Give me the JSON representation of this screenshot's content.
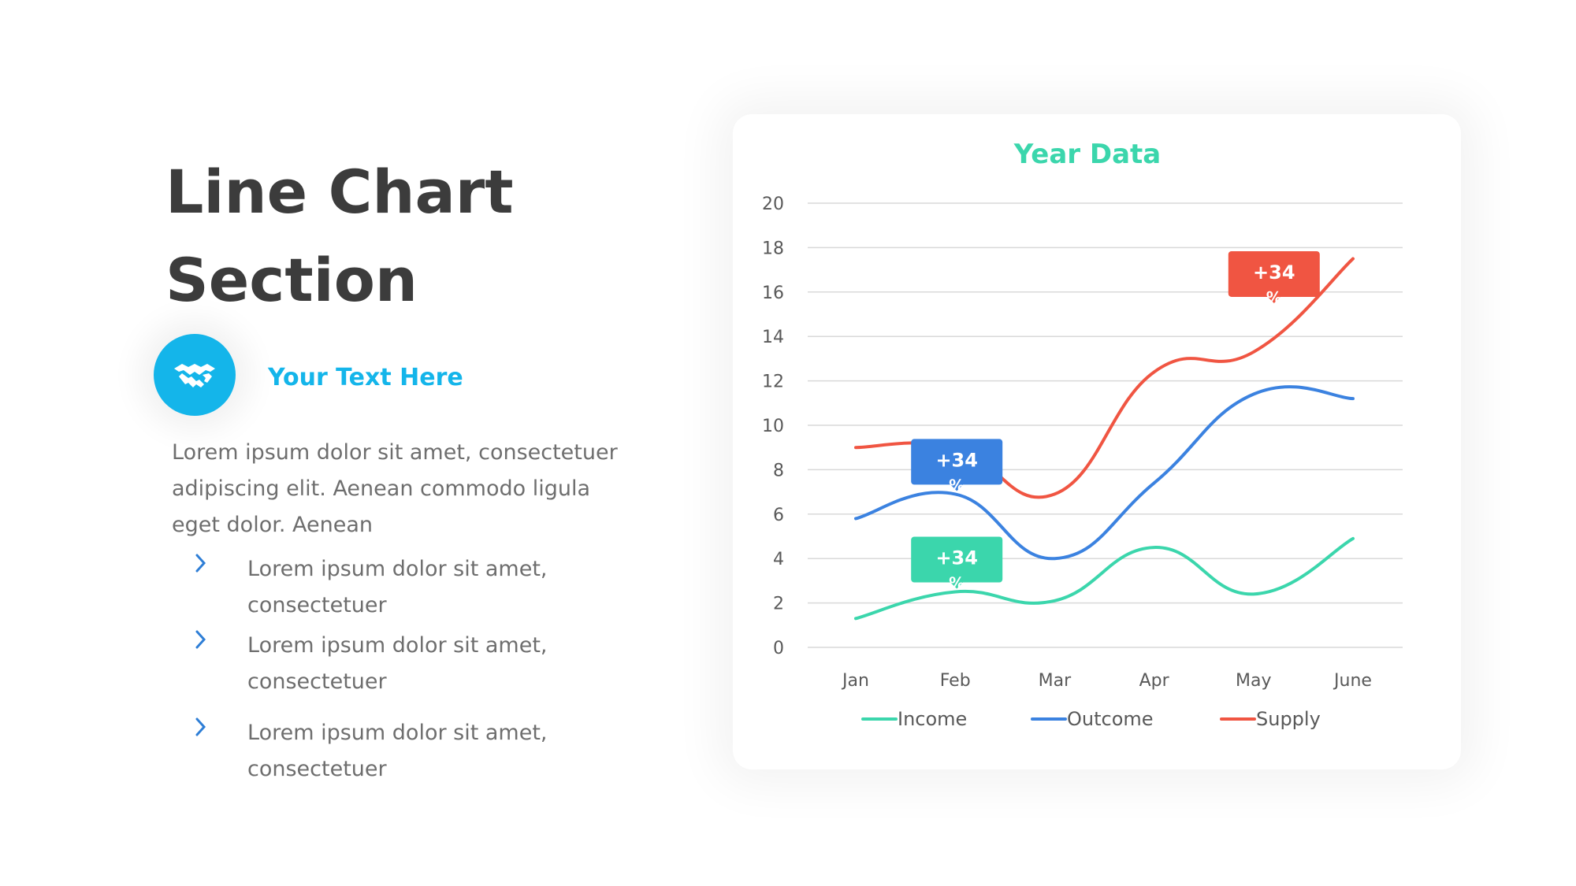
{
  "slide": {
    "title_line1": "Line Chart",
    "title_line2": "Section",
    "icon": "handshake-icon",
    "subtitle": "Your Text Here",
    "paragraph_line1": "Lorem ipsum dolor sit amet, consectetuer",
    "paragraph_line2": "adipiscing elit. Aenean commodo ligula",
    "paragraph_line3": "eget dolor. Aenean",
    "bullets": [
      {
        "line1": "Lorem ipsum dolor sit amet,",
        "line2": "consectetuer"
      },
      {
        "line1": "Lorem ipsum dolor sit amet,",
        "line2": "consectetuer"
      },
      {
        "line1": "Lorem ipsum dolor sit amet,",
        "line2": "consectetuer"
      }
    ]
  },
  "colors": {
    "text_dark": "#3c3c3c",
    "text_body": "#6e6e6e",
    "accent": "#14b5ea",
    "bullet_chevron": "#2e7ed6",
    "chart_title": "#3bd6ac",
    "income": "#3bd6ac",
    "outcome": "#3b82e0",
    "supply": "#f05542",
    "grid": "#d9d9d9"
  },
  "chart_data": {
    "type": "line",
    "title": "Year Data",
    "categories": [
      "Jan",
      "Feb",
      "Mar",
      "Apr",
      "May",
      "June"
    ],
    "ylim": [
      0,
      20
    ],
    "yticks": [
      0,
      2,
      4,
      6,
      8,
      10,
      12,
      14,
      16,
      18,
      20
    ],
    "grid": true,
    "legend_position": "bottom",
    "series": [
      {
        "name": "Income",
        "values": [
          1.3,
          2.5,
          2.1,
          4.5,
          2.4,
          4.9
        ]
      },
      {
        "name": "Outcome",
        "values": [
          5.8,
          6.9,
          4.0,
          7.4,
          11.4,
          11.2
        ]
      },
      {
        "name": "Supply",
        "values": [
          9.0,
          9.0,
          6.9,
          12.4,
          13.3,
          17.5
        ]
      }
    ],
    "annotations": [
      {
        "series": "Income",
        "category": "Feb",
        "label": "+34",
        "suffix": "%"
      },
      {
        "series": "Outcome",
        "category": "Feb",
        "label": "+34",
        "suffix": "%"
      },
      {
        "series": "Supply",
        "category": "May",
        "label": "+34",
        "suffix": "%"
      }
    ]
  }
}
